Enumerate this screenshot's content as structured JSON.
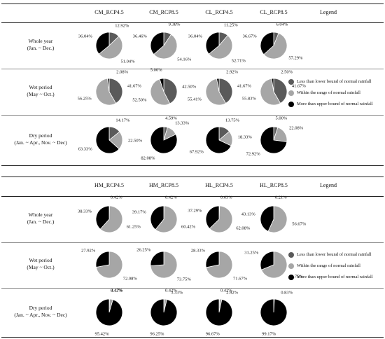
{
  "chart_data": [
    {
      "type": "pie",
      "columns": [
        "CM_RCP4.5",
        "CM_RCP8.5",
        "CL_RCP4.5",
        "CL_RCP8.5"
      ],
      "legend_header": "Legend",
      "rows": [
        {
          "title1": "Whole year",
          "title2": "(Jan. ~ Dec.)",
          "pies": [
            [
              12.92,
              51.04,
              36.04
            ],
            [
              9.38,
              54.16,
              36.46
            ],
            [
              11.25,
              52.71,
              36.04
            ],
            [
              6.04,
              57.29,
              36.67
            ]
          ],
          "labels": [
            [
              "12.92%",
              "51.04%",
              "36.04%"
            ],
            [
              "9.38%",
              "54.16%",
              "36.46%"
            ],
            [
              "11.25%",
              "52.71%",
              "36.04%"
            ],
            [
              "6.04%",
              "57.29%",
              "36.67%"
            ]
          ]
        },
        {
          "title1": "Wet period",
          "title2": "(May ~ Oct.)",
          "pies": [
            [
              41.67,
              56.25,
              2.08
            ],
            [
              42.5,
              52.5,
              5.0
            ],
            [
              41.67,
              55.41,
              2.92
            ],
            [
              41.67,
              55.83,
              2.5
            ]
          ],
          "labels": [
            [
              "41.67%",
              "56.25%",
              "2.08%"
            ],
            [
              "42.50%",
              "52.50%",
              "5.00%"
            ],
            [
              "41.67%",
              "55.41%",
              "2.92%"
            ],
            [
              "41.67%",
              "55.83%",
              "2.50%"
            ]
          ]
        },
        {
          "title1": "Dry period",
          "title2": "(Jan. ~ Apr., Nov. ~ Dec)",
          "pies": [
            [
              14.17,
              22.5,
              63.33
            ],
            [
              4.59,
              13.33,
              82.08
            ],
            [
              13.75,
              18.33,
              67.92
            ],
            [
              5.0,
              22.08,
              72.92
            ]
          ],
          "labels": [
            [
              "14.17%",
              "22.50%",
              "63.33%"
            ],
            [
              "4.59%",
              "13.33%",
              "82.08%"
            ],
            [
              "13.75%",
              "18.33%",
              "67.92%"
            ],
            [
              "5.00%",
              "22.08%",
              "72.92%"
            ]
          ]
        }
      ]
    },
    {
      "type": "pie",
      "columns": [
        "HM_RCP4.5",
        "HM_RCP8.5",
        "HL_RCP4.5",
        "HL_RCP8.5"
      ],
      "legend_header": "Legend",
      "rows": [
        {
          "title1": "Whole year",
          "title2": "(Jan. ~ Dec.)",
          "pies": [
            [
              0.42,
              61.25,
              38.33
            ],
            [
              0.42,
              60.42,
              39.17
            ],
            [
              0.63,
              62.08,
              37.29
            ],
            [
              0.21,
              56.67,
              43.13
            ]
          ],
          "labels": [
            [
              "0.42%",
              "61.25%",
              "38.33%"
            ],
            [
              "0.42%",
              "60.42%",
              "39.17%"
            ],
            [
              "0.63%",
              "62.08%",
              "37.29%"
            ],
            [
              "0.21%",
              "56.67%",
              "43.13%"
            ]
          ]
        },
        {
          "title1": "Wet period",
          "title2": "(May ~ Oct.)",
          "pies": [
            [
              0,
              72.08,
              27.92
            ],
            [
              0,
              73.75,
              26.25
            ],
            [
              0,
              71.67,
              28.33
            ],
            [
              0,
              68.75,
              31.25
            ]
          ],
          "labels": [
            [
              "",
              "72.08%",
              "27.92%"
            ],
            [
              "",
              "73.75%",
              "26.25%"
            ],
            [
              "",
              "71.67%",
              "28.33%"
            ],
            [
              "",
              "68.75%",
              "31.25%"
            ]
          ]
        },
        {
          "title1": "Dry period",
          "title2": "(Jan. ~ Apr., Nov. ~ Dec)",
          "pies": [
            [
              0.42,
              4.17,
              95.42
            ],
            [
              0.42,
              3.33,
              96.25
            ],
            [
              0.42,
              2.92,
              96.67
            ],
            [
              0,
              0.83,
              99.17
            ]
          ],
          "labels": [
            [
              "0.42%",
              "4.17%",
              "95.42%"
            ],
            [
              "0.42%",
              "3.33%",
              "96.25%"
            ],
            [
              "0.42%",
              "2.92%",
              "96.67%"
            ],
            [
              "",
              "0.83%",
              "99.17%"
            ]
          ]
        }
      ]
    }
  ],
  "legend_items": [
    {
      "label": "Less than lower bound of normal rainfall",
      "color": "#5a5a5a"
    },
    {
      "label": "Within the range of normal rainfall",
      "color": "#a6a6a6"
    },
    {
      "label": "More than upper bound of normal rainfall",
      "color": "#000000"
    }
  ],
  "colors": {
    "low": "#5a5a5a",
    "normal": "#a6a6a6",
    "high": "#000000",
    "edge": "#ffffff"
  }
}
